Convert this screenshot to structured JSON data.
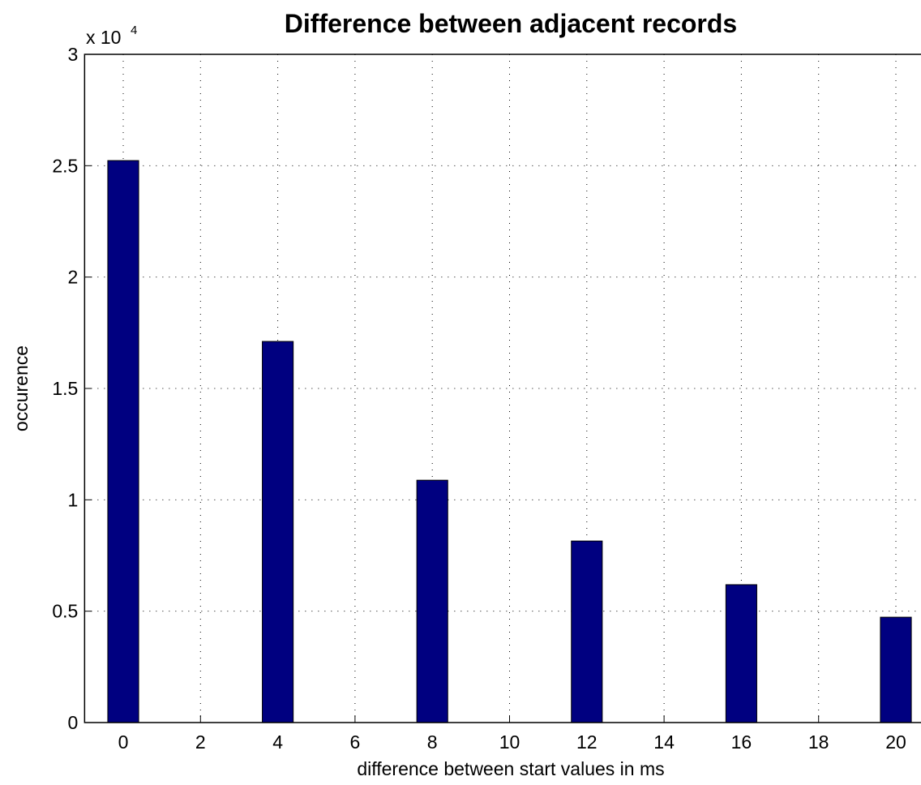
{
  "chart_data": {
    "type": "bar",
    "title": "Difference between adjacent records",
    "xlabel": "difference between start values in ms",
    "ylabel": "occurence",
    "y_multiplier": {
      "base": "x 10",
      "exponent": "4"
    },
    "x": [
      0,
      4,
      8,
      12,
      16,
      20
    ],
    "values": [
      2.523,
      1.711,
      1.088,
      0.815,
      0.619,
      0.473
    ],
    "color": "#000080",
    "bar_width": 0.8,
    "xlim": [
      -1,
      21
    ],
    "xticks": [
      0,
      2,
      4,
      6,
      8,
      10,
      12,
      14,
      16,
      18,
      20
    ],
    "ylim": [
      0,
      3
    ],
    "yticks": [
      0,
      0.5,
      1,
      1.5,
      2,
      2.5,
      3
    ],
    "grid": true
  }
}
